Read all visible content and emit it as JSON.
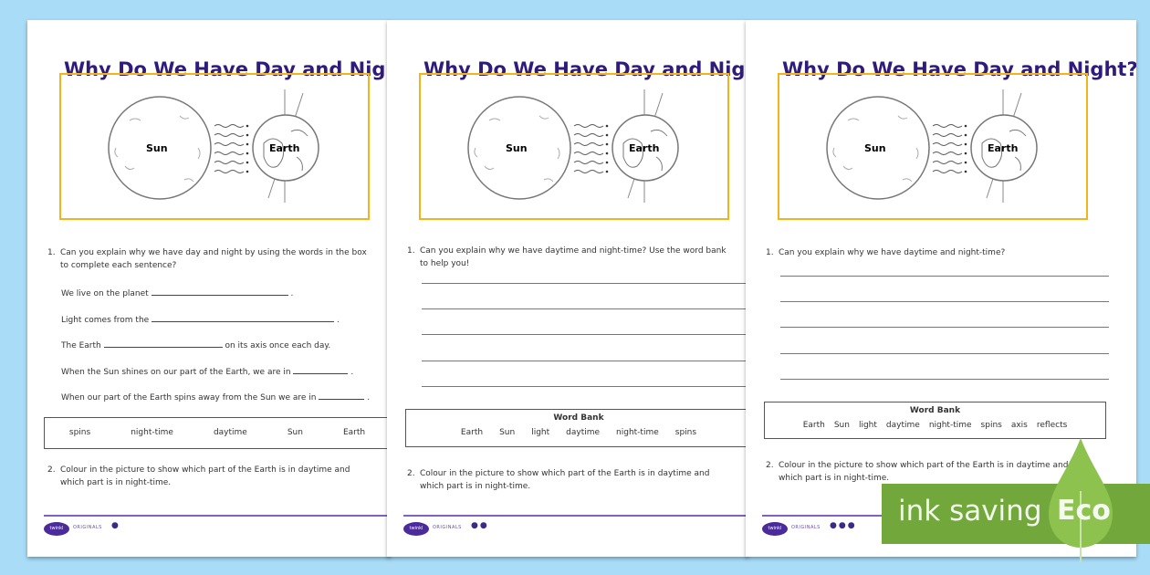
{
  "colors": {
    "background": "#a9dcf7",
    "title": "#2f1b7c",
    "diagram_border": "#f3b31a",
    "footer": "#8060c0",
    "eco": "#72a83b"
  },
  "pages": [
    {
      "title": "Why Do We Have Day and Night?",
      "sun_label": "Sun",
      "earth_label": "Earth",
      "q1_num": "1.",
      "q1": "Can you explain why we have day and night by using the words in the box to complete each sentence?",
      "sentences": [
        {
          "before": "We live on the planet",
          "after": "."
        },
        {
          "before": "Light comes from the",
          "after": "."
        },
        {
          "before": "The Earth",
          "after": "on its axis once each day."
        },
        {
          "before": "When the Sun shines on our part of the Earth, we are in",
          "after": "."
        },
        {
          "before": "When our part of the Earth spins away from the Sun we are in",
          "after": "."
        }
      ],
      "word_bank_title": "",
      "words": [
        "spins",
        "night-time",
        "daytime",
        "Sun",
        "Earth"
      ],
      "q2_num": "2.",
      "q2": "Colour in the picture to show which part of the Earth is in daytime and which part is in night-time.",
      "logo": "twinkl",
      "footer_label": "ORIGINALS",
      "level_dots": "●"
    },
    {
      "title": "Why Do We Have Day and Night?",
      "sun_label": "Sun",
      "earth_label": "Earth",
      "q1_num": "1.",
      "q1": "Can you explain why we have daytime and night-time? Use the word bank to help you!",
      "sentences": [],
      "word_bank_title": "Word Bank",
      "words": [
        "Earth",
        "Sun",
        "light",
        "daytime",
        "night-time",
        "spins"
      ],
      "q2_num": "2.",
      "q2": "Colour in the picture to show which part of the Earth is in daytime and which part is in night-time.",
      "logo": "twinkl",
      "footer_label": "ORIGINALS",
      "level_dots": "●●"
    },
    {
      "title": "Why Do We Have Day and Night?",
      "sun_label": "Sun",
      "earth_label": "Earth",
      "q1_num": "1.",
      "q1": "Can you explain why we have daytime and night-time?",
      "sentences": [],
      "word_bank_title": "Word Bank",
      "words": [
        "Earth",
        "Sun",
        "light",
        "daytime",
        "night-time",
        "spins",
        "axis",
        "reflects"
      ],
      "q2_num": "2.",
      "q2": "Colour in the picture to show which part of the Earth is in daytime and which part is in night-time.",
      "logo": "twinkl",
      "footer_label": "ORIGINALS",
      "level_dots": "●●●"
    }
  ],
  "badge": {
    "text": "ink saving",
    "eco": "Eco",
    "icon": "leaf-icon"
  }
}
